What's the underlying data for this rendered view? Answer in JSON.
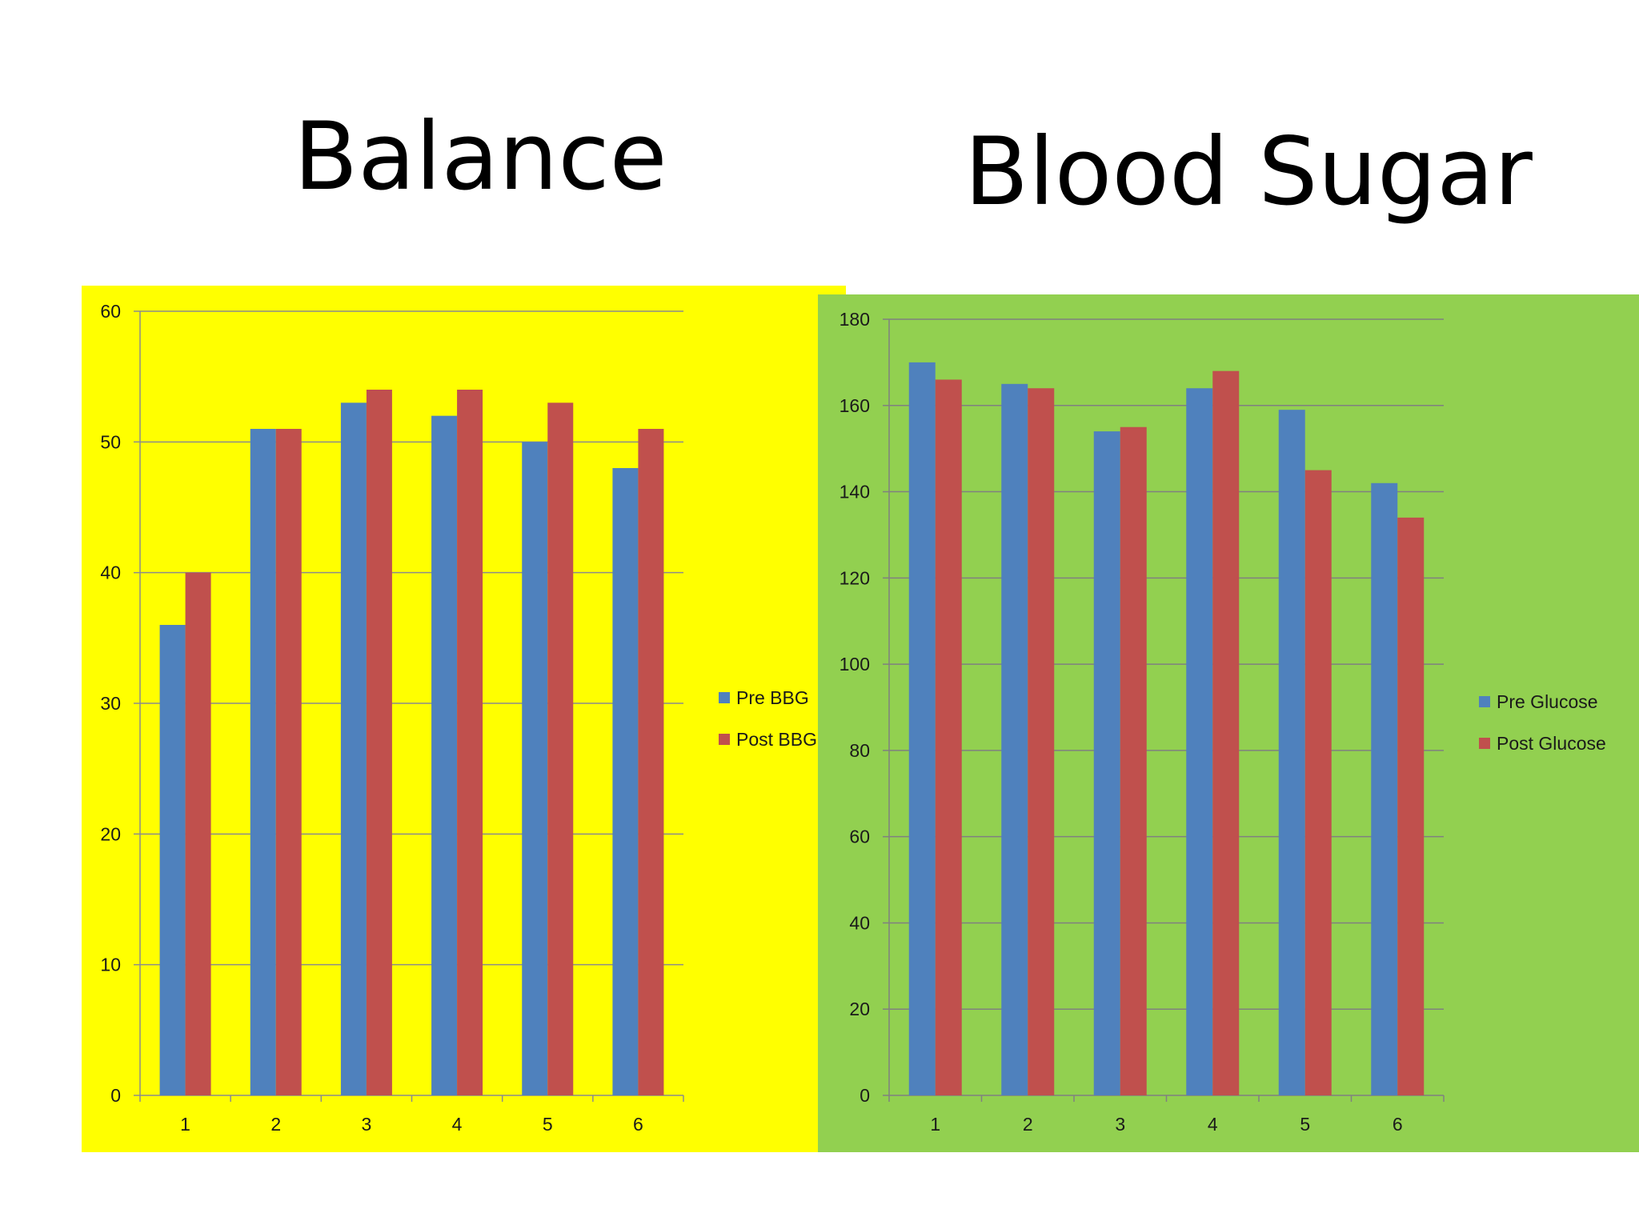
{
  "charts": {
    "left": {
      "title": "Balance",
      "colors": {
        "background": "#ffff00",
        "pre": "#4f81bd",
        "post": "#c0504d",
        "grid": "#8c8c8c",
        "axis": "#8c8c8c"
      }
    },
    "right": {
      "title": "Blood Sugar",
      "colors": {
        "background": "#92d050",
        "pre": "#4f81bd",
        "post": "#c0504d",
        "grid": "#808080",
        "axis": "#808080"
      }
    }
  },
  "chart_data": [
    {
      "type": "bar",
      "title": "Balance",
      "xlabel": "",
      "ylabel": "",
      "categories": [
        "1",
        "2",
        "3",
        "4",
        "5",
        "6"
      ],
      "series": [
        {
          "name": "Pre BBG",
          "values": [
            36,
            51,
            53,
            52,
            50,
            48
          ]
        },
        {
          "name": "Post BBG",
          "values": [
            40,
            51,
            54,
            54,
            53,
            51
          ]
        }
      ],
      "ylim": [
        0,
        60
      ],
      "yticks": [
        0,
        10,
        20,
        30,
        40,
        50,
        60
      ],
      "grid": true,
      "legend": "right"
    },
    {
      "type": "bar",
      "title": "Blood Sugar",
      "xlabel": "",
      "ylabel": "",
      "categories": [
        "1",
        "2",
        "3",
        "4",
        "5",
        "6"
      ],
      "series": [
        {
          "name": "Pre Glucose",
          "values": [
            170,
            165,
            154,
            164,
            159,
            142
          ]
        },
        {
          "name": "Post Glucose",
          "values": [
            166,
            164,
            155,
            168,
            145,
            134
          ]
        }
      ],
      "ylim": [
        0,
        180
      ],
      "yticks": [
        0,
        20,
        40,
        60,
        80,
        100,
        120,
        140,
        160,
        180
      ],
      "grid": true,
      "legend": "right"
    }
  ]
}
